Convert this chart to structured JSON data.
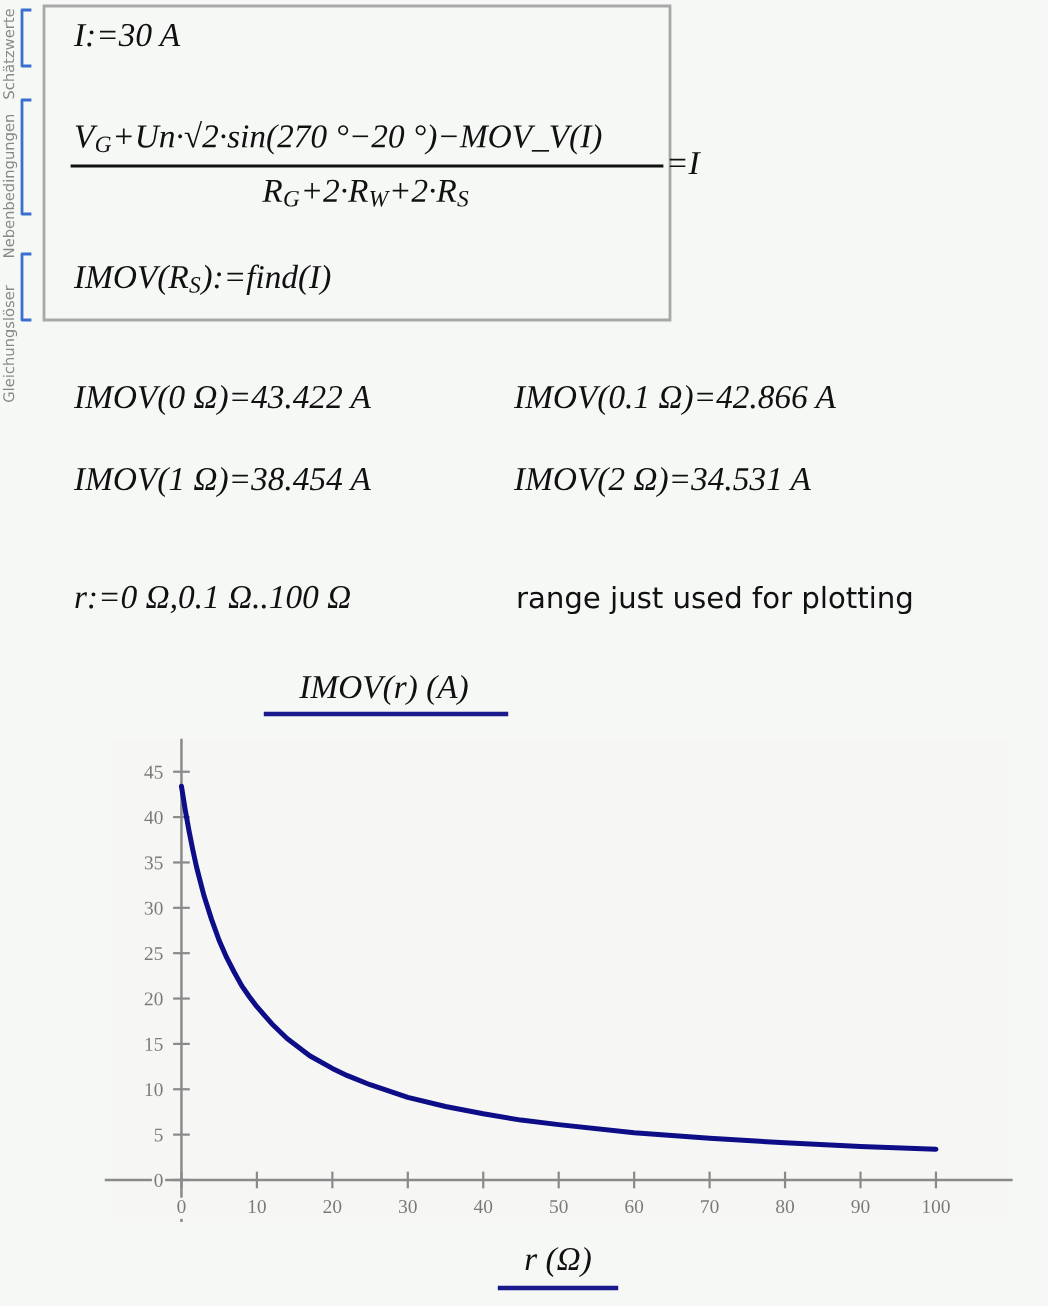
{
  "chart_data": {
    "type": "line",
    "xlabel": "r (Ω)",
    "ylabel": "IMOV(r) (A)",
    "x": [
      0,
      0.1,
      0.5,
      1,
      1.5,
      2,
      2.5,
      3,
      4,
      5,
      6,
      7,
      8,
      9,
      10,
      12,
      14,
      17,
      20,
      22,
      25,
      30,
      35,
      40,
      45,
      50,
      60,
      70,
      80,
      90,
      100
    ],
    "series": [
      {
        "color": "#0d0d87",
        "values": [
          43.4,
          42.9,
          40.8,
          38.5,
          36.4,
          34.5,
          32.9,
          31.3,
          28.7,
          26.4,
          24.5,
          22.9,
          21.4,
          20.2,
          19.1,
          17.2,
          15.6,
          13.7,
          12.3,
          11.5,
          10.5,
          9.1,
          8.1,
          7.3,
          6.6,
          6.1,
          5.2,
          4.6,
          4.1,
          3.7,
          3.4
        ]
      }
    ],
    "xlim": [
      -10,
      110
    ],
    "ylim": [
      -4.5,
      48.5
    ],
    "xticks": [
      0,
      10,
      20,
      30,
      40,
      50,
      60,
      70,
      80,
      90,
      100
    ],
    "yticks": [
      0,
      5,
      10,
      15,
      20,
      25,
      30,
      35,
      40,
      45
    ],
    "grid": false,
    "marker": "none",
    "line_style": "solid",
    "annotations": [
      "Schätzwerte",
      "Nebenbedingungen",
      "Gleichungslöser",
      "I:=30 A",
      "V$_{G}$+Un·√2·sin(270 °−20 °)−MOV_V(I)",
      "R$_{G}$+2·R$_{W}$+2·R$_{S}$",
      "=I",
      "IMOV(R$_{S}$):=find(I)",
      "IMOV(0 Ω)=43.422 A",
      "IMOV(0.1 Ω)=42.866 A",
      "IMOV(1 Ω)=38.454 A",
      "IMOV(2 Ω)=34.531 A",
      "r:=0 Ω,0.1 Ω..100 Ω",
      "range just used for plotting"
    ]
  }
}
